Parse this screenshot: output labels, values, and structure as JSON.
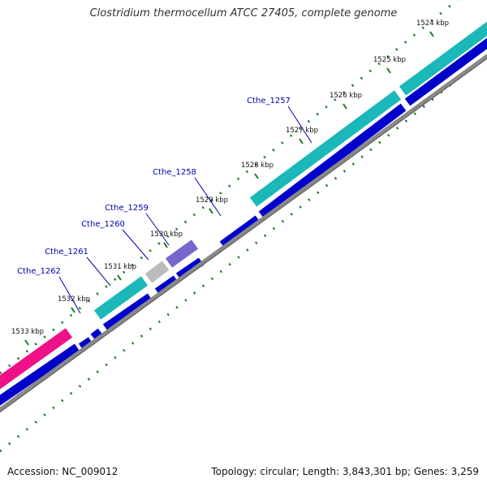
{
  "header": {
    "title": "Clostridium thermocellum ATCC 27405, complete genome"
  },
  "footer": {
    "accession": "Accession: NC_009012",
    "topology": "Topology: circular; Length: 3,843,301 bp; Genes: 3,259"
  },
  "colors": {
    "backbone": "#888888",
    "cds": "#0000cc",
    "gene_teal": "#1ab8b8",
    "gene_pink": "#ee1188",
    "gene_gray": "#bbbbbb",
    "gene_purple": "#7766cc",
    "label_blue": "#0000aa",
    "tick_green": "#1a7a1a"
  },
  "scale": {
    "unit": "kbp",
    "ticks": [
      "1524 kbp",
      "1525 kbp",
      "1526 kbp",
      "1527 kbp",
      "1528 kbp",
      "1529 kbp",
      "1530 kbp",
      "1531 kbp",
      "1532 kbp",
      "1533 kbp"
    ]
  },
  "genes": [
    {
      "label": "Cthe_1257"
    },
    {
      "label": "Cthe_1258"
    },
    {
      "label": "Cthe_1259"
    },
    {
      "label": "Cthe_1260"
    },
    {
      "label": "Cthe_1261"
    },
    {
      "label": "Cthe_1262"
    }
  ]
}
